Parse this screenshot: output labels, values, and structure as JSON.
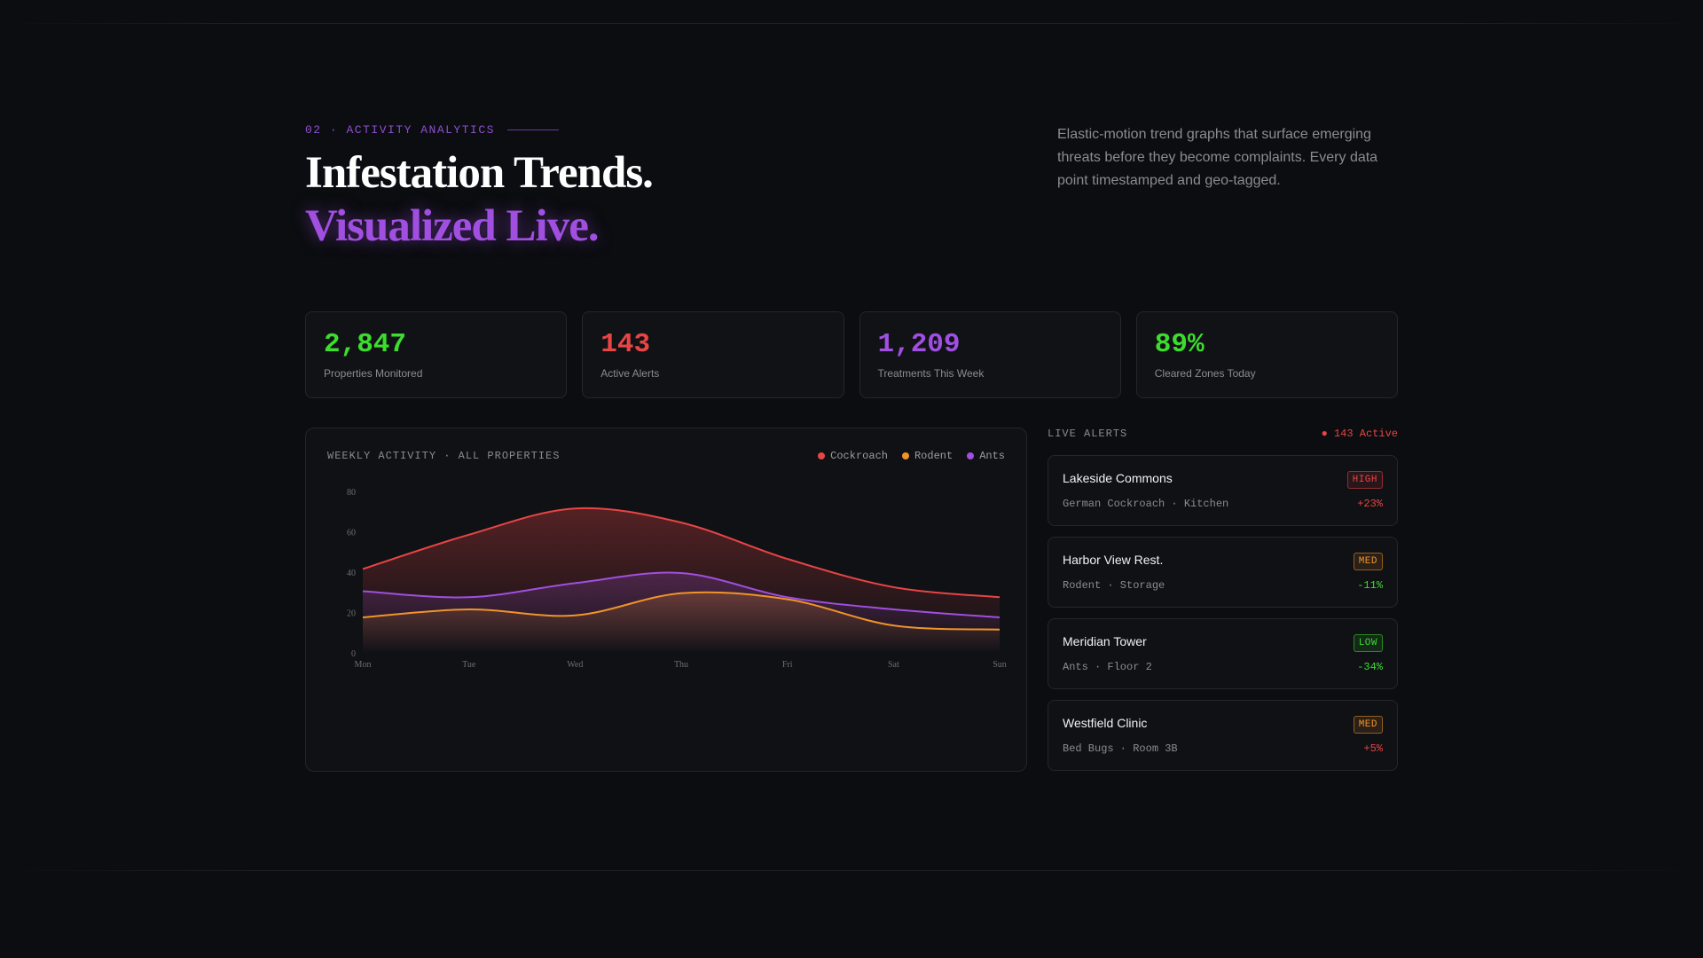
{
  "header": {
    "eyebrow": "02 · ACTIVITY ANALYTICS",
    "title_line1": "Infestation Trends.",
    "title_line2": "Visualized Live.",
    "intro": "Elastic-motion trend graphs that surface emerging threats before they become complaints. Every data point timestamped and geo-tagged."
  },
  "stats": [
    {
      "value": "2,847",
      "label": "Properties Monitored",
      "color": "#3ddc2e"
    },
    {
      "value": "143",
      "label": "Active Alerts",
      "color": "#e84545"
    },
    {
      "value": "1,209",
      "label": "Treatments This Week",
      "color": "#a04fe0"
    },
    {
      "value": "89%",
      "label": "Cleared Zones Today",
      "color": "#3ddc2e"
    }
  ],
  "chart": {
    "title": "WEEKLY ACTIVITY · ALL PROPERTIES",
    "legend": [
      {
        "name": "Cockroach",
        "color": "#e84545"
      },
      {
        "name": "Rodent",
        "color": "#f0942a"
      },
      {
        "name": "Ants",
        "color": "#a04fe0"
      }
    ]
  },
  "chart_data": {
    "type": "area",
    "title": "WEEKLY ACTIVITY · ALL PROPERTIES",
    "xlabel": "",
    "ylabel": "",
    "x": [
      "Mon",
      "Tue",
      "Wed",
      "Thu",
      "Fri",
      "Sat",
      "Sun"
    ],
    "y_ticks": [
      0,
      20,
      40,
      60,
      80
    ],
    "ylim": [
      0,
      80
    ],
    "grid": false,
    "legend_position": "top-right",
    "series": [
      {
        "name": "Cockroach",
        "color": "#e84545",
        "values": [
          42,
          59,
          72,
          65,
          47,
          33,
          28
        ]
      },
      {
        "name": "Ants",
        "color": "#a04fe0",
        "values": [
          31,
          28,
          35,
          40,
          28,
          22,
          18
        ]
      },
      {
        "name": "Rodent",
        "color": "#f0942a",
        "values": [
          18,
          22,
          19,
          30,
          27,
          14,
          12
        ]
      }
    ]
  },
  "alerts": {
    "label": "LIVE ALERTS",
    "active_text": "● 143 Active",
    "items": [
      {
        "name": "Lakeside Commons",
        "sub": "German Cockroach · Kitchen",
        "level": "HIGH",
        "delta": "+23%",
        "level_color": "#e84545",
        "delta_color": "#e84545"
      },
      {
        "name": "Harbor View Rest.",
        "sub": "Rodent · Storage",
        "level": "MED",
        "delta": "-11%",
        "level_color": "#f0942a",
        "delta_color": "#3ddc2e"
      },
      {
        "name": "Meridian Tower",
        "sub": "Ants · Floor 2",
        "level": "LOW",
        "delta": "-34%",
        "level_color": "#3ddc2e",
        "delta_color": "#3ddc2e"
      },
      {
        "name": "Westfield Clinic",
        "sub": "Bed Bugs · Room 3B",
        "level": "MED",
        "delta": "+5%",
        "level_color": "#f0942a",
        "delta_color": "#e84545"
      }
    ]
  }
}
